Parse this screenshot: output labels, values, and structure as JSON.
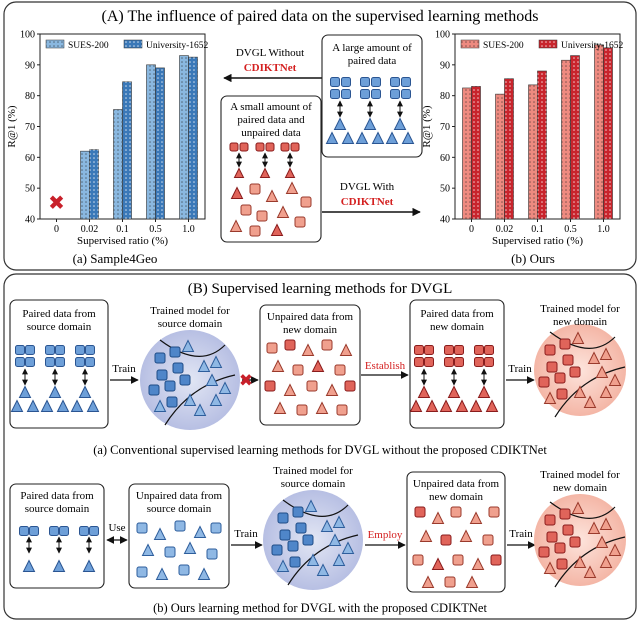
{
  "panel_a": {
    "title": "(A) The influence of paired  data on the supervised learning methods",
    "left_caption": "(a) Sample4Geo",
    "right_caption": "(b) Ours",
    "arrow_top_label_1": "DVGL Without",
    "arrow_top_label_2": "CDIKTNet",
    "arrow_bottom_label_1": "DVGL With",
    "arrow_bottom_label_2": "CDIKTNet",
    "box_large_1": "A large amount of",
    "box_large_2": "paired data",
    "box_small_1": "A small amount of",
    "box_small_2": "paired data and",
    "box_small_3": "unpaired data"
  },
  "chart_data": [
    {
      "type": "bar",
      "name": "Sample4Geo",
      "categories": [
        "0",
        "0.02",
        "0.1",
        "0.5",
        "1.0"
      ],
      "series": [
        {
          "name": "SUES-200",
          "values": [
            null,
            62,
            75.5,
            90,
            93
          ],
          "color": "#8ab8e0"
        },
        {
          "name": "University-1652",
          "values": [
            null,
            62.5,
            84.5,
            89,
            92.5
          ],
          "color": "#3a78b8"
        }
      ],
      "missing_marker": "✖",
      "ylabel": "R@1 (%)",
      "xlabel": "Supervised ratio (%)",
      "ylim": [
        40,
        100
      ],
      "yticks": [
        40,
        50,
        60,
        70,
        80,
        90,
        100
      ]
    },
    {
      "type": "bar",
      "name": "Ours",
      "categories": [
        "0",
        "0.02",
        "0.1",
        "0.5",
        "1.0"
      ],
      "series": [
        {
          "name": "SUES-200",
          "values": [
            82.5,
            80.5,
            83.5,
            91.5,
            96.5
          ],
          "color": "#ee8a80"
        },
        {
          "name": "University-1652",
          "values": [
            83,
            85.5,
            88,
            93,
            95.5
          ],
          "color": "#c8242c"
        }
      ],
      "ylabel": "R@1 (%)",
      "xlabel": "Supervised ratio (%)",
      "ylim": [
        40,
        100
      ],
      "yticks": [
        40,
        50,
        60,
        70,
        80,
        90,
        100
      ]
    }
  ],
  "panel_b": {
    "title": "(B) Supervised learning methods for DVGL",
    "row1": {
      "box1_1": "Paired data from",
      "box1_2": "source domain",
      "train": "Train",
      "circle1_1": "Trained model for",
      "circle1_2": "source domain",
      "box2_1": "Unpaired data from",
      "box2_2": "new domain",
      "establish": "Establish",
      "box3_1": "Paired data from",
      "box3_2": "new domain",
      "train2": "Train",
      "circle2_1": "Trained model for",
      "circle2_2": "new domain",
      "caption": "(a) Conventional supervised learning methods for DVGL without the proposed CDIKTNet"
    },
    "row2": {
      "box1_1": "Paired data from",
      "box1_2": "source domain",
      "use": "Use",
      "box2_1": "Unpaired data from",
      "box2_2": "source domain",
      "train": "Train",
      "circle1_1": "Trained model for",
      "circle1_2": "source domain",
      "employ": "Employ",
      "box3_1": "Unpaired data from",
      "box3_2": "new domain",
      "train2": "Train",
      "circle2_1": "Trained model for",
      "circle2_2": "new domain",
      "caption": "(b) Ours learning method for DVGL with the proposed CDIKTNet"
    }
  }
}
